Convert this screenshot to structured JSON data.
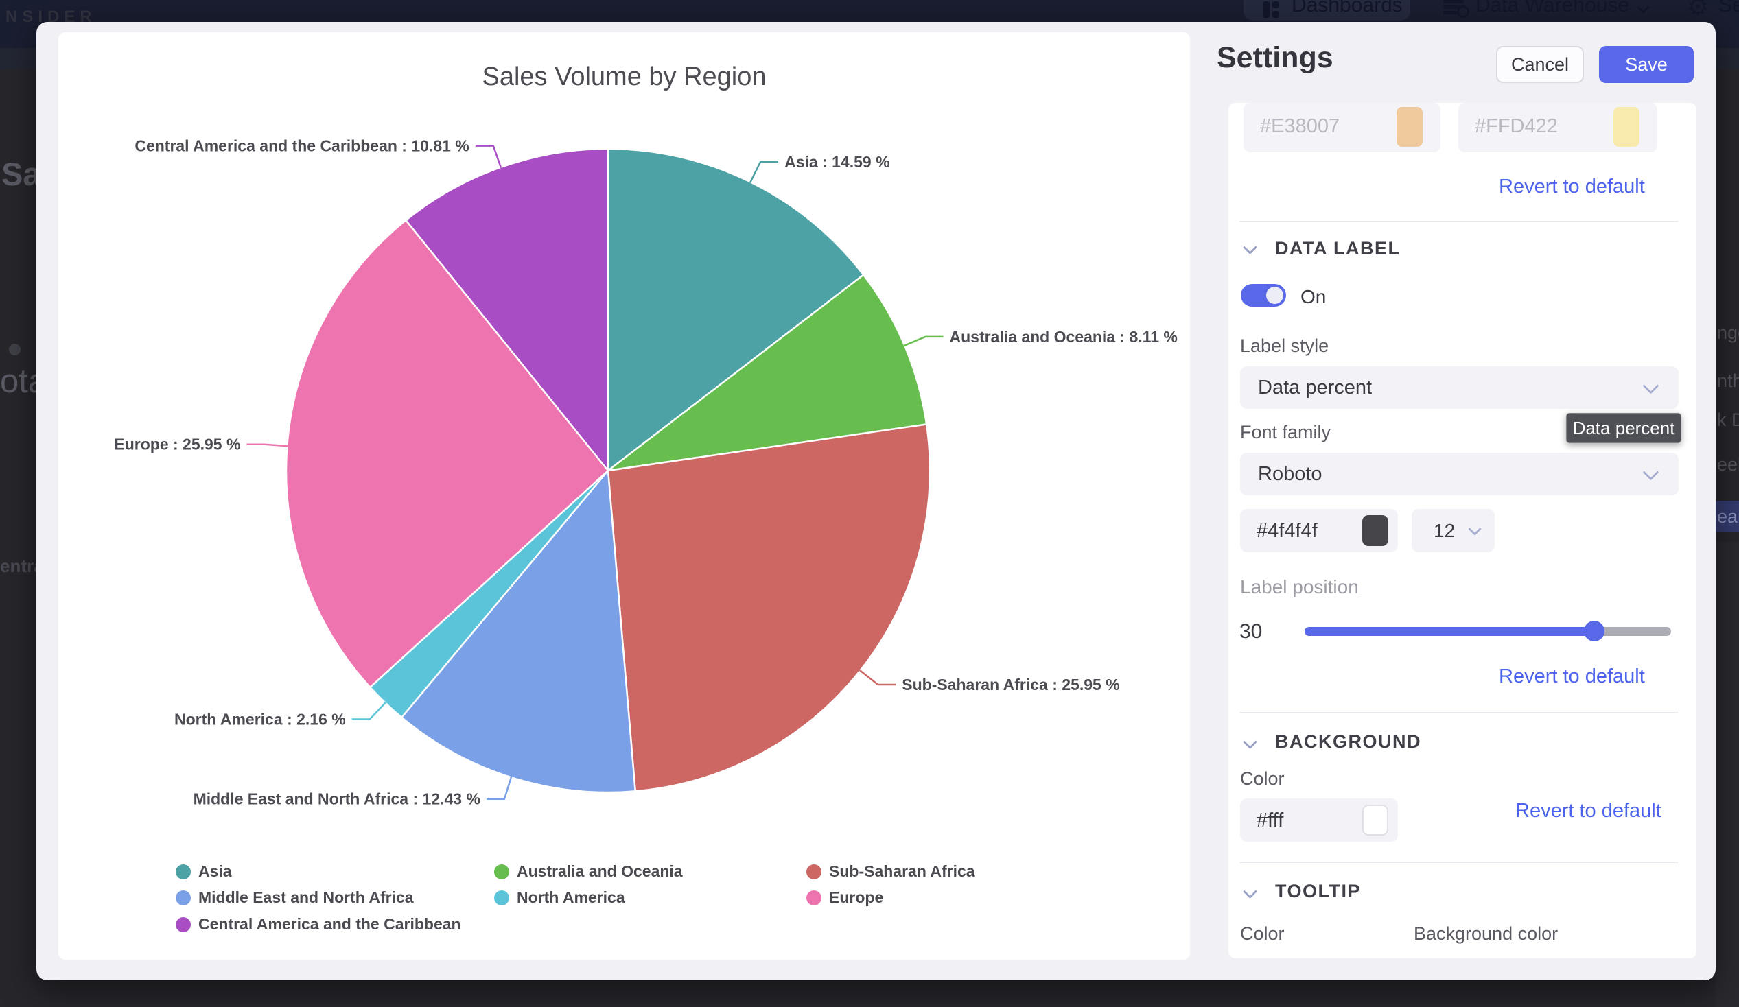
{
  "chart_data": {
    "type": "pie",
    "title": "Sales Volume by Region",
    "unit": "%",
    "label_format": "{name} : {value} %",
    "legend_position": "bottom",
    "start_angle_deg": 0,
    "direction": "clockwise",
    "slices": [
      {
        "label": "Asia",
        "value": 14.59,
        "color": "#4CA2A4"
      },
      {
        "label": "Australia and Oceania",
        "value": 8.11,
        "color": "#67BE4E"
      },
      {
        "label": "Sub-Saharan Africa",
        "value": 25.95,
        "color": "#CD6763"
      },
      {
        "label": "Middle East and North Africa",
        "value": 12.43,
        "color": "#7AA0E8"
      },
      {
        "label": "North America",
        "value": 2.16,
        "color": "#5BC4D9"
      },
      {
        "label": "Europe",
        "value": 25.95,
        "color": "#ED74AE"
      },
      {
        "label": "Central America and the Caribbean",
        "value": 10.81,
        "color": "#A84DC4"
      }
    ]
  },
  "header": {
    "brand": "NSIDER",
    "nav_dashboards": "Dashboards",
    "nav_data_warehouse": "Data Warehouse",
    "nav_settings_partial": "Se"
  },
  "background_fragments": {
    "left_heading": "Sal",
    "left_subheading": "ota",
    "left_small": "entral",
    "right_items": [
      "nge",
      "nth",
      "k D",
      "eek",
      "ear"
    ]
  },
  "settings": {
    "title": "Settings",
    "cancel_label": "Cancel",
    "save_label": "Save",
    "revert_label": "Revert to default",
    "accent_color": "#5968E8",
    "link_color": "#4C63EE",
    "color_inputs": [
      {
        "value": "#E38007",
        "swatch": "#F0CA9C"
      },
      {
        "value": "#FFD422",
        "swatch": "#F8E9AC"
      }
    ],
    "data_label": {
      "header": "DATA LABEL",
      "toggle_state": "On",
      "label_style_label": "Label style",
      "label_style_value": "Data percent",
      "tooltip_text": "Data percent",
      "font_family_label": "Font family",
      "font_family_value": "Roboto",
      "font_color_value": "#4f4f4f",
      "font_color_swatch": "#454549",
      "font_size_value": "12",
      "label_position_label": "Label position",
      "label_position_value": "30"
    },
    "background_section": {
      "header": "BACKGROUND",
      "color_label": "Color",
      "color_value": "#fff",
      "color_swatch": "#FFFFFF"
    },
    "tooltip_section": {
      "header": "TOOLTIP",
      "color_label": "Color",
      "background_color_label": "Background color"
    }
  }
}
